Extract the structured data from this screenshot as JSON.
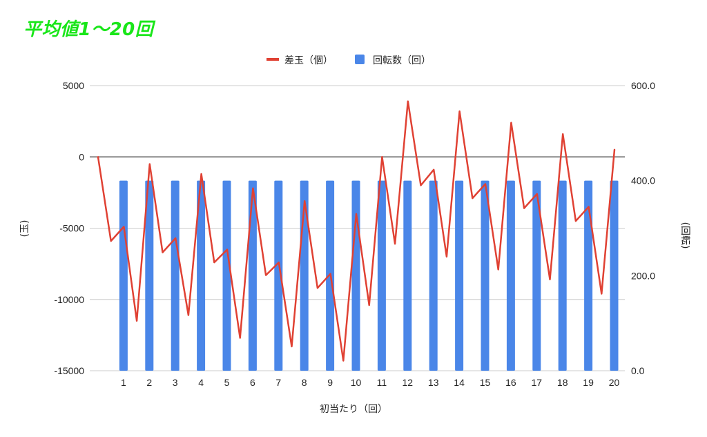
{
  "title": "平均値1〜20回",
  "chart_data": {
    "type": "bar+line",
    "title": "平均値1〜20回",
    "xlabel": "初当たり（回）",
    "ylabel_left": "(玉)",
    "ylabel_right": "(回転)",
    "categories": [
      "1",
      "2",
      "3",
      "4",
      "5",
      "6",
      "7",
      "8",
      "9",
      "10",
      "11",
      "12",
      "13",
      "14",
      "15",
      "16",
      "17",
      "18",
      "19",
      "20"
    ],
    "left_axis": {
      "min": -15000,
      "max": 5000,
      "ticks": [
        5000,
        0,
        -5000,
        -10000,
        -15000
      ],
      "tick_labels": [
        "5000",
        "0",
        "-5000",
        "-10000",
        "-15000"
      ]
    },
    "right_axis": {
      "min": 0,
      "max": 600,
      "ticks": [
        600,
        400,
        200,
        0
      ],
      "tick_labels": [
        "600.0",
        "400.0",
        "200.0",
        "0.0"
      ]
    },
    "legend": {
      "position": "top",
      "entries": [
        "差玉（個）",
        "回転数（回）"
      ]
    },
    "grid": true,
    "series": [
      {
        "name": "回転数（回）",
        "type": "bar",
        "axis": "right",
        "color": "#4a86e8",
        "values": [
          400,
          400,
          400,
          400,
          400,
          400,
          400,
          400,
          400,
          400,
          400,
          400,
          400,
          400,
          400,
          400,
          400,
          400,
          400,
          400
        ]
      },
      {
        "name": "差玉（個）",
        "type": "line",
        "axis": "left",
        "color": "#e04133",
        "x": [
          0,
          0.5,
          1,
          1.5,
          2,
          2.5,
          3,
          3.5,
          4,
          4.5,
          5,
          5.5,
          6,
          6.5,
          7,
          7.5,
          8,
          8.5,
          9,
          9.5,
          10,
          10.5,
          11,
          11.5,
          12,
          12.5,
          13,
          13.5,
          14,
          14.5,
          15,
          15.5,
          16,
          16.5,
          17,
          17.5,
          18,
          18.5,
          19,
          19.5,
          20
        ],
        "values": [
          0,
          -5900,
          -4900,
          -11500,
          -500,
          -6700,
          -5700,
          -11100,
          -1200,
          -7400,
          -6500,
          -12700,
          -2200,
          -8300,
          -7400,
          -13300,
          -3100,
          -9200,
          -8200,
          -14300,
          -4000,
          -10400,
          0,
          -6100,
          3900,
          -2000,
          -900,
          -7000,
          3200,
          -2900,
          -1900,
          -7900,
          2400,
          -3600,
          -2600,
          -8600,
          1600,
          -4500,
          -3500,
          -9600,
          500
        ]
      }
    ]
  }
}
